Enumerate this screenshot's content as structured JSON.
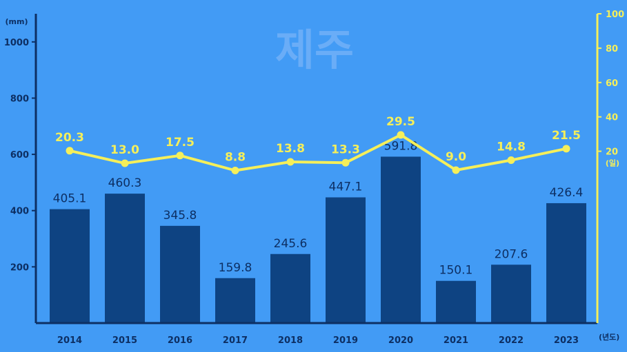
{
  "chart_data": {
    "type": "bar",
    "title": "제주",
    "categories": [
      "2014",
      "2015",
      "2016",
      "2017",
      "2018",
      "2019",
      "2020",
      "2021",
      "2022",
      "2023"
    ],
    "x_unit": "(년도)",
    "series": [
      {
        "type": "bar",
        "axis": "left",
        "values": [
          405.1,
          460.3,
          345.8,
          159.8,
          245.6,
          447.1,
          591.8,
          150.1,
          207.6,
          426.4
        ],
        "labels": [
          "405.1",
          "460.3",
          "345.8",
          "159.8",
          "245.6",
          "447.1",
          "591.8",
          "150.1",
          "207.6",
          "426.4"
        ],
        "color": "#0e4382"
      },
      {
        "type": "line",
        "axis": "right",
        "values": [
          20.3,
          13.0,
          17.5,
          8.8,
          13.8,
          13.3,
          29.5,
          9.0,
          14.8,
          21.5
        ],
        "labels": [
          "20.3",
          "13.0",
          "17.5",
          "8.8",
          "13.8",
          "13.3",
          "29.5",
          "9.0",
          "14.8",
          "21.5"
        ],
        "color": "#f5ef5a"
      }
    ],
    "left_axis": {
      "unit": "(mm)",
      "ticks": [
        "200",
        "400",
        "600",
        "800",
        "1000"
      ],
      "ylim": [
        0,
        1100
      ],
      "color": "#0d2f63"
    },
    "right_axis": {
      "unit": "(일)",
      "ticks": [
        "20",
        "40",
        "60",
        "80",
        "100"
      ],
      "ylim": [
        -80,
        100
      ],
      "color": "#f5ef5a"
    },
    "grid": false,
    "legend": "none"
  }
}
